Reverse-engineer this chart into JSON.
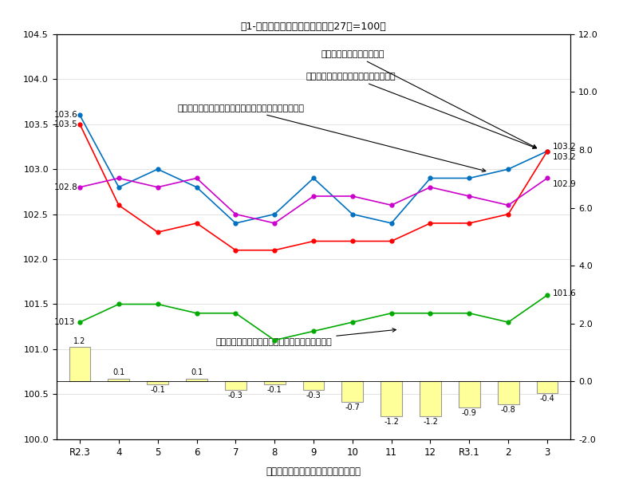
{
  "x_labels": [
    "R2.3",
    "4",
    "5",
    "6",
    "7",
    "8",
    "9",
    "10",
    "11",
    "12",
    "R3.1",
    "2",
    "3"
  ],
  "x_indices": [
    0,
    1,
    2,
    3,
    4,
    5,
    6,
    7,
    8,
    9,
    10,
    11,
    12
  ],
  "blue_line": [
    103.6,
    102.8,
    103.0,
    102.8,
    102.4,
    102.5,
    102.9,
    102.5,
    102.4,
    102.9,
    102.9,
    103.0,
    103.2
  ],
  "red_line": [
    103.5,
    102.6,
    102.3,
    102.4,
    102.1,
    102.1,
    102.2,
    102.2,
    102.2,
    102.4,
    102.4,
    102.5,
    103.2
  ],
  "purple_line": [
    102.8,
    102.9,
    102.8,
    102.9,
    102.5,
    102.4,
    102.7,
    102.7,
    102.6,
    102.8,
    102.7,
    102.6,
    102.9
  ],
  "green_line": [
    101.3,
    101.5,
    101.5,
    101.4,
    101.4,
    101.1,
    101.2,
    101.3,
    101.4,
    101.4,
    101.4,
    101.3,
    101.6
  ],
  "bar_values": [
    1.2,
    0.1,
    -0.1,
    0.1,
    -0.3,
    -0.1,
    -0.3,
    -0.7,
    -1.2,
    -1.2,
    -0.9,
    -0.8,
    -0.4
  ],
  "blue_label": "【青】総合指数（左目盛）",
  "red_label": "【赤】生鮮食品を除く総合（左目盛）",
  "purple_label": "【紫】生鮮食品及びエネルギーを除く総合（左目盛）",
  "green_label": "【緑】食料及びエネルギーを除く総合（左目盛）",
  "bar_label": "総合指数対前年同月上昇率（右目盛）",
  "figure_title": "図1-消費者物価指数の推移（平成27年=100）",
  "left_ylim": [
    100.0,
    104.5
  ],
  "right_ylim": [
    -2.0,
    12.0
  ],
  "left_yticks": [
    100.0,
    100.5,
    101.0,
    101.5,
    102.0,
    102.5,
    103.0,
    103.5,
    104.0,
    104.5
  ],
  "right_yticks": [
    -2.0,
    0.0,
    2.0,
    4.0,
    6.0,
    8.0,
    10.0,
    12.0
  ],
  "blue_color": "#0070C0",
  "red_color": "#FF0000",
  "purple_color": "#CC00CC",
  "green_color": "#00AA00",
  "bar_color": "#FFFF99",
  "bar_edge_color": "#999999"
}
